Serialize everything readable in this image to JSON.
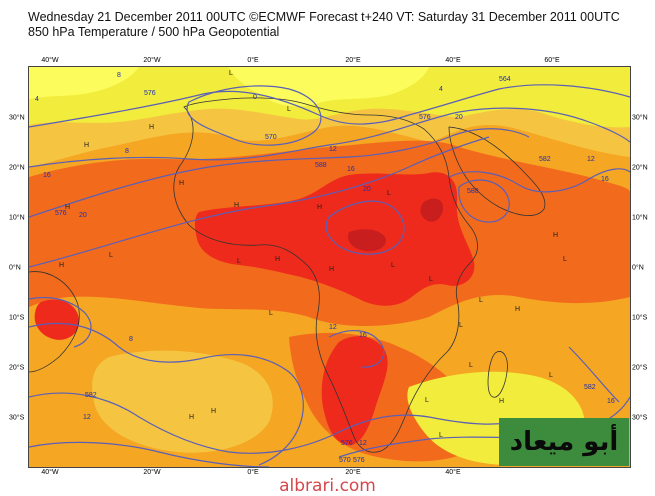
{
  "header": {
    "line1": "Wednesday 21 December 2011 00UTC ©ECMWF Forecast t+240 VT: Saturday 31 December 2011 00UTC",
    "line2": "850 hPa Temperature / 500 hPa Geopotential"
  },
  "axes": {
    "longitudes": [
      "40°W",
      "20°W",
      "0°E",
      "20°E",
      "40°E",
      "60°E"
    ],
    "latitudes": [
      "30°N",
      "20°N",
      "10°N",
      "0°N",
      "10°S",
      "20°S",
      "30°S"
    ]
  },
  "contour_labels": [
    "8",
    "4",
    "0",
    "4",
    "576",
    "564",
    "570",
    "576",
    "8",
    "12",
    "16",
    "20",
    "20",
    "582",
    "588",
    "12",
    "16",
    "16",
    "20",
    "12",
    "8",
    "588",
    "576",
    "582",
    "16",
    "12",
    "576",
    "570",
    "576",
    "16",
    "582",
    "12"
  ],
  "pressure_marks": [
    "H",
    "H",
    "L",
    "L",
    "H",
    "H",
    "H",
    "L",
    "H",
    "L",
    "H",
    "L",
    "L",
    "H",
    "H",
    "L",
    "H",
    "L",
    "H",
    "L",
    "L",
    "L",
    "H",
    "L",
    "L",
    "H",
    "L",
    "H",
    "L"
  ],
  "colors": {
    "cold": "#fcfc5c",
    "cool": "#f2ec3c",
    "mild": "#f5c542",
    "warm": "#f5a623",
    "hot": "#f26b1d",
    "very_hot": "#ee2a1c",
    "extreme": "#c81e1e",
    "contour": "#5a5fb8"
  },
  "watermark": "أبو ميعاد",
  "site": "albrari.com"
}
